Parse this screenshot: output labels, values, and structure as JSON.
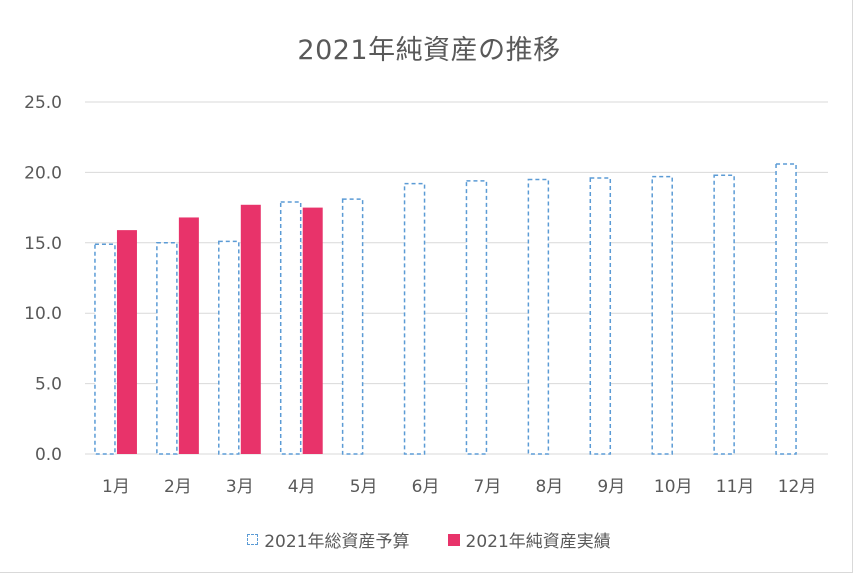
{
  "chart_data": {
    "type": "bar",
    "title": "2021年純資産の推移",
    "xlabel": "",
    "ylabel": "",
    "categories": [
      "1月",
      "2月",
      "3月",
      "4月",
      "5月",
      "6月",
      "7月",
      "8月",
      "9月",
      "10月",
      "11月",
      "12月"
    ],
    "yticks": [
      "0.0",
      "5.0",
      "10.0",
      "15.0",
      "20.0",
      "25.0"
    ],
    "ylim": [
      0,
      25
    ],
    "grid": true,
    "legend_position": "bottom",
    "series": [
      {
        "name": "2021年総資産予算",
        "style": "dashed-outline",
        "color": "#5b9bd5",
        "values": [
          14.9,
          15.0,
          15.1,
          17.9,
          18.1,
          19.2,
          19.4,
          19.5,
          19.6,
          19.7,
          19.8,
          20.6
        ]
      },
      {
        "name": "2021年純資産実績",
        "style": "solid",
        "color": "#e8336a",
        "values": [
          15.9,
          16.8,
          17.7,
          17.5,
          null,
          null,
          null,
          null,
          null,
          null,
          null,
          null
        ]
      }
    ]
  }
}
